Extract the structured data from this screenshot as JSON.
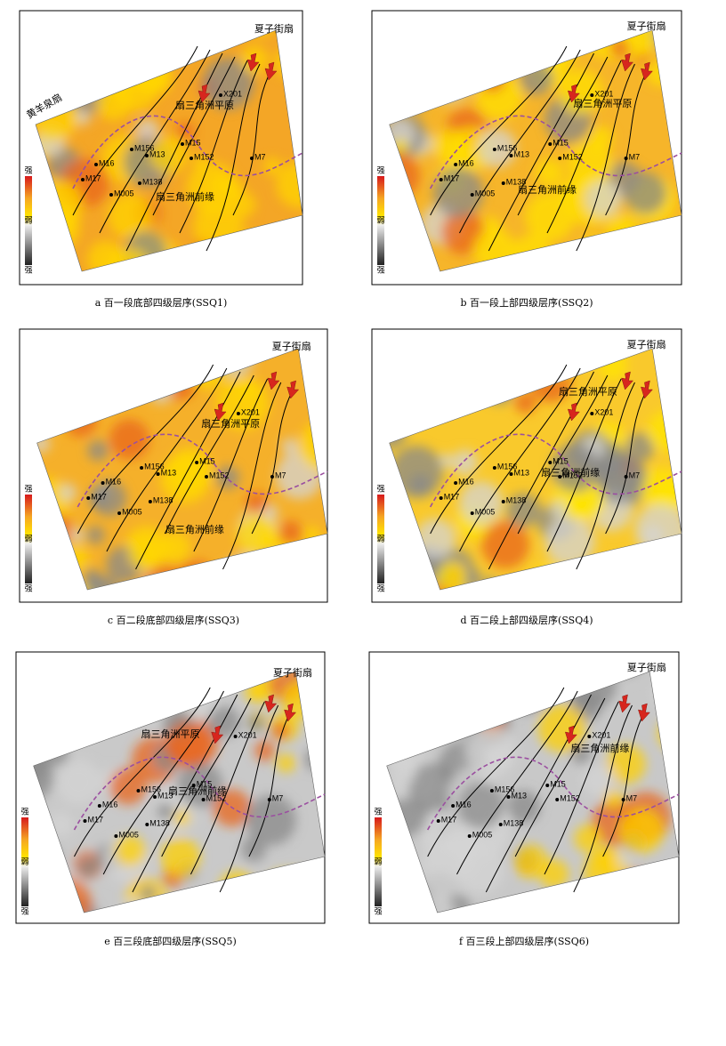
{
  "panels": [
    {
      "caption": "a  百一段底部四级层序(SSQ1)",
      "labels": [
        "夏子街扇",
        "黄羊泉扇",
        "扇三角洲平原",
        "扇三角洲前缘"
      ]
    },
    {
      "caption": "b  百一段上部四级层序(SSQ2)",
      "labels": [
        "夏子街扇",
        "扇三角洲平原",
        "扇三角洲前缘"
      ]
    },
    {
      "caption": "c  百二段底部四级层序(SSQ3)",
      "labels": [
        "夏子街扇",
        "扇三角洲平原",
        "扇三角洲前缘"
      ]
    },
    {
      "caption": "d  百二段上部四级层序(SSQ4)",
      "labels": [
        "夏子街扇",
        "扇三角洲平原",
        "扇三角洲前缘"
      ]
    },
    {
      "caption": "e  百三段底部四级层序(SSQ5)",
      "labels": [
        "夏子街扇",
        "扇三角洲平原",
        "扇三角洲前缘"
      ]
    },
    {
      "caption": "f  百三段上部四级层序(SSQ6)",
      "labels": [
        "夏子街扇",
        "扇三角洲前缘"
      ]
    }
  ],
  "wells": [
    "X201",
    "M15",
    "M7",
    "M152",
    "M156",
    "M13",
    "M16",
    "M17",
    "M138",
    "M005"
  ],
  "legend": [
    "强",
    "弱",
    "强"
  ]
}
